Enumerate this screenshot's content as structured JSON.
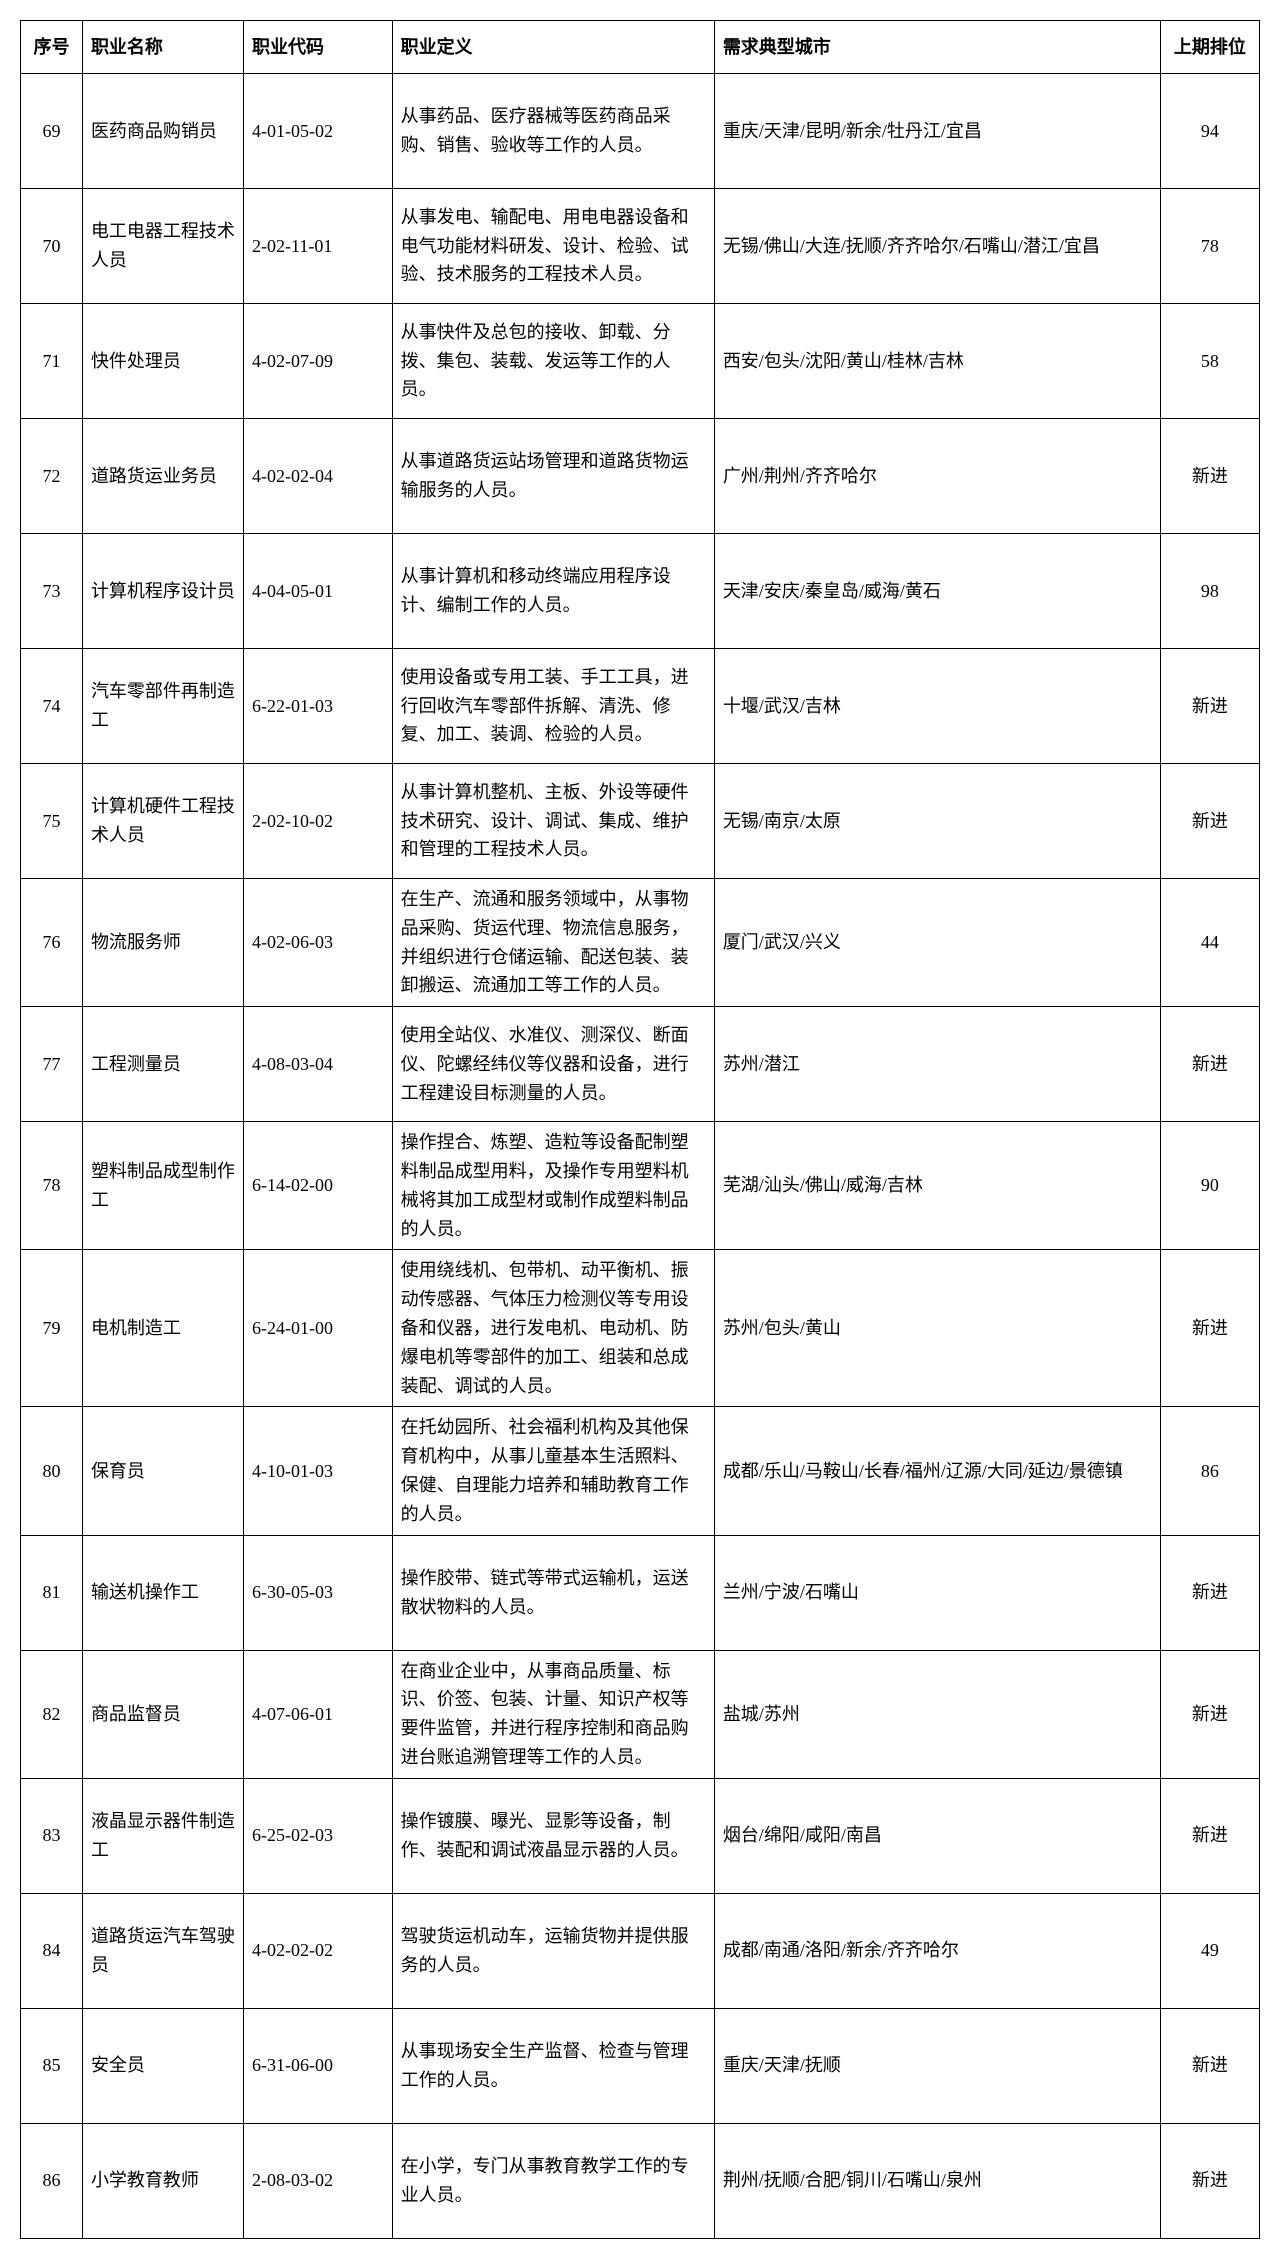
{
  "columns": {
    "seq": "序号",
    "name": "职业名称",
    "code": "职业代码",
    "definition": "职业定义",
    "cities": "需求典型城市",
    "rank": "上期排位"
  },
  "rows": [
    {
      "seq": "69",
      "name": "医药商品购销员",
      "code": "4-01-05-02",
      "definition": "从事药品、医疗器械等医药商品采购、销售、验收等工作的人员。",
      "cities": "重庆/天津/昆明/新余/牡丹江/宜昌",
      "rank": "94"
    },
    {
      "seq": "70",
      "name": "电工电器工程技术人员",
      "code": "2-02-11-01",
      "definition": "从事发电、输配电、用电电器设备和电气功能材料研发、设计、检验、试验、技术服务的工程技术人员。",
      "cities": "无锡/佛山/大连/抚顺/齐齐哈尔/石嘴山/潜江/宜昌",
      "rank": "78"
    },
    {
      "seq": "71",
      "name": "快件处理员",
      "code": "4-02-07-09",
      "definition": "从事快件及总包的接收、卸载、分拨、集包、装载、发运等工作的人员。",
      "cities": "西安/包头/沈阳/黄山/桂林/吉林",
      "rank": "58"
    },
    {
      "seq": "72",
      "name": "道路货运业务员",
      "code": "4-02-02-04",
      "definition": "从事道路货运站场管理和道路货物运输服务的人员。",
      "cities": "广州/荆州/齐齐哈尔",
      "rank": "新进"
    },
    {
      "seq": "73",
      "name": "计算机程序设计员",
      "code": "4-04-05-01",
      "definition": "从事计算机和移动终端应用程序设计、编制工作的人员。",
      "cities": "天津/安庆/秦皇岛/威海/黄石",
      "rank": "98"
    },
    {
      "seq": "74",
      "name": "汽车零部件再制造工",
      "code": "6-22-01-03",
      "definition": "使用设备或专用工装、手工工具，进行回收汽车零部件拆解、清洗、修复、加工、装调、检验的人员。",
      "cities": "十堰/武汉/吉林",
      "rank": "新进"
    },
    {
      "seq": "75",
      "name": "计算机硬件工程技术人员",
      "code": "2-02-10-02",
      "definition": "从事计算机整机、主板、外设等硬件技术研究、设计、调试、集成、维护和管理的工程技术人员。",
      "cities": "无锡/南京/太原",
      "rank": "新进"
    },
    {
      "seq": "76",
      "name": "物流服务师",
      "code": "4-02-06-03",
      "definition": "在生产、流通和服务领域中，从事物品采购、货运代理、物流信息服务，并组织进行仓储运输、配送包装、装卸搬运、流通加工等工作的人员。",
      "cities": "厦门/武汉/兴义",
      "rank": "44"
    },
    {
      "seq": "77",
      "name": "工程测量员",
      "code": "4-08-03-04",
      "definition": "使用全站仪、水准仪、测深仪、断面仪、陀螺经纬仪等仪器和设备，进行工程建设目标测量的人员。",
      "cities": "苏州/潜江",
      "rank": "新进"
    },
    {
      "seq": "78",
      "name": "塑料制品成型制作工",
      "code": "6-14-02-00",
      "definition": "操作捏合、炼塑、造粒等设备配制塑料制品成型用料，及操作专用塑料机械将其加工成型材或制作成塑料制品的人员。",
      "cities": "芜湖/汕头/佛山/威海/吉林",
      "rank": "90"
    },
    {
      "seq": "79",
      "name": "电机制造工",
      "code": "6-24-01-00",
      "definition": "使用绕线机、包带机、动平衡机、振动传感器、气体压力检测仪等专用设备和仪器，进行发电机、电动机、防爆电机等零部件的加工、组装和总成装配、调试的人员。",
      "cities": "苏州/包头/黄山",
      "rank": "新进"
    },
    {
      "seq": "80",
      "name": "保育员",
      "code": "4-10-01-03",
      "definition": "在托幼园所、社会福利机构及其他保育机构中，从事儿童基本生活照料、保健、自理能力培养和辅助教育工作的人员。",
      "cities": "成都/乐山/马鞍山/长春/福州/辽源/大同/延边/景德镇",
      "rank": "86"
    },
    {
      "seq": "81",
      "name": "输送机操作工",
      "code": "6-30-05-03",
      "definition": "操作胶带、链式等带式运输机，运送散状物料的人员。",
      "cities": "兰州/宁波/石嘴山",
      "rank": "新进"
    },
    {
      "seq": "82",
      "name": "商品监督员",
      "code": "4-07-06-01",
      "definition": "在商业企业中，从事商品质量、标识、价签、包装、计量、知识产权等要件监管，并进行程序控制和商品购进台账追溯管理等工作的人员。",
      "cities": "盐城/苏州",
      "rank": "新进"
    },
    {
      "seq": "83",
      "name": "液晶显示器件制造工",
      "code": "6-25-02-03",
      "definition": "操作镀膜、曝光、显影等设备，制作、装配和调试液晶显示器的人员。",
      "cities": "烟台/绵阳/咸阳/南昌",
      "rank": "新进"
    },
    {
      "seq": "84",
      "name": "道路货运汽车驾驶员",
      "code": "4-02-02-02",
      "definition": "驾驶货运机动车，运输货物并提供服务的人员。",
      "cities": "成都/南通/洛阳/新余/齐齐哈尔",
      "rank": "49"
    },
    {
      "seq": "85",
      "name": "安全员",
      "code": "6-31-06-00",
      "definition": "从事现场安全生产监督、检查与管理工作的人员。",
      "cities": "重庆/天津/抚顺",
      "rank": "新进"
    },
    {
      "seq": "86",
      "name": "小学教育教师",
      "code": "2-08-03-02",
      "definition": "在小学，专门从事教育教学工作的专业人员。",
      "cities": "荆州/抚顺/合肥/铜川/石嘴山/泉州",
      "rank": "新进"
    }
  ]
}
